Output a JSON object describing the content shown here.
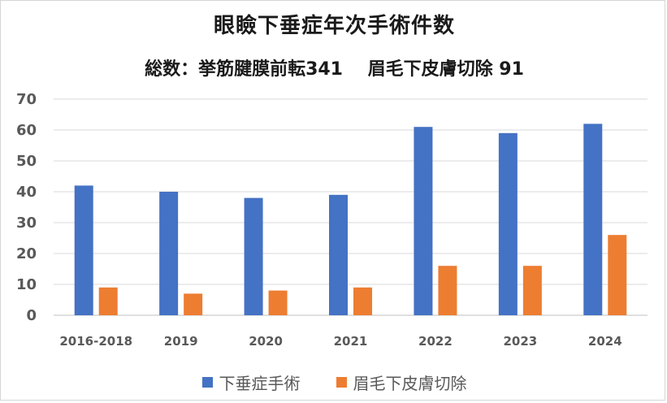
{
  "chart_data": {
    "type": "bar",
    "title": "眼瞼下垂症年次手術件数",
    "subtitle_parts": [
      "総数：挙筋腱膜前転341",
      "眉毛下皮膚切除 91"
    ],
    "categories": [
      "2016-2018",
      "2019",
      "2020",
      "2021",
      "2022",
      "2023",
      "2024"
    ],
    "series": [
      {
        "name": "下垂症手術",
        "color": "#4472C4",
        "values": [
          42,
          40,
          38,
          39,
          61,
          59,
          62
        ]
      },
      {
        "name": "眉毛下皮膚切除",
        "color": "#ED7D31",
        "values": [
          9,
          7,
          8,
          9,
          16,
          16,
          26
        ]
      }
    ],
    "ylim": [
      0,
      70
    ],
    "yticks": [
      0,
      10,
      20,
      30,
      40,
      50,
      60,
      70
    ],
    "grid": true,
    "legend_position": "bottom"
  }
}
